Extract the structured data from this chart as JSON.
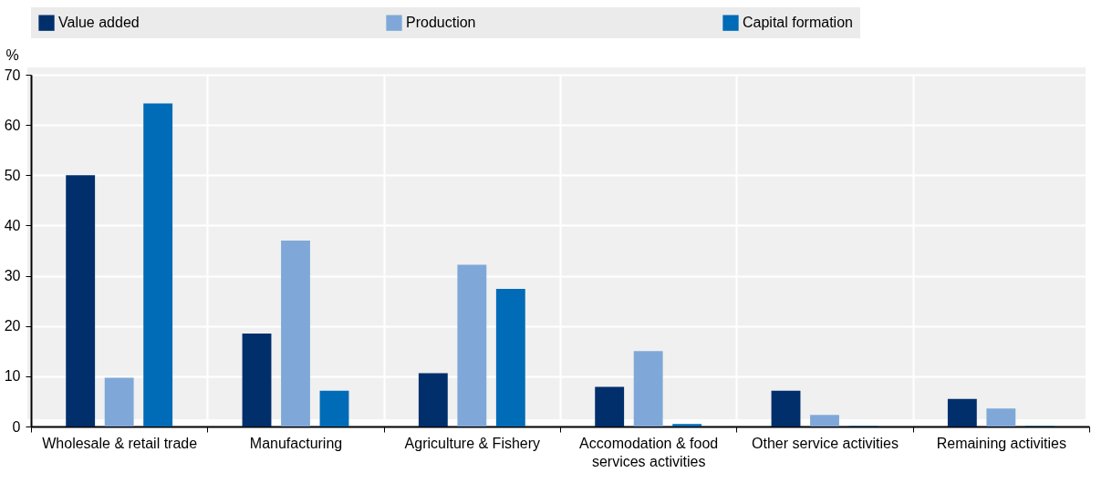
{
  "chart_data": {
    "type": "bar",
    "ylabel": "%",
    "categories": [
      "Wholesale & retail trade",
      "Manufacturing",
      "Agriculture & Fishery",
      "Accomodation & food services activities",
      "Other service activities",
      "Remaining activities"
    ],
    "series": [
      {
        "name": "Value added",
        "color": "#002f6c",
        "values": [
          50,
          18.5,
          10.6,
          7.9,
          7.1,
          5.5
        ]
      },
      {
        "name": "Production",
        "color": "#7fa8d9",
        "values": [
          9.7,
          37,
          32.2,
          15,
          2.3,
          3.6
        ]
      },
      {
        "name": "Capital formation",
        "color": "#006bb6",
        "values": [
          64.3,
          7.1,
          27.4,
          0.5,
          0.1,
          0.1
        ]
      }
    ],
    "ylim": [
      0,
      70
    ],
    "yticks": [
      0,
      10,
      20,
      30,
      40,
      50,
      60,
      70
    ],
    "grid": true,
    "legend": "top"
  }
}
